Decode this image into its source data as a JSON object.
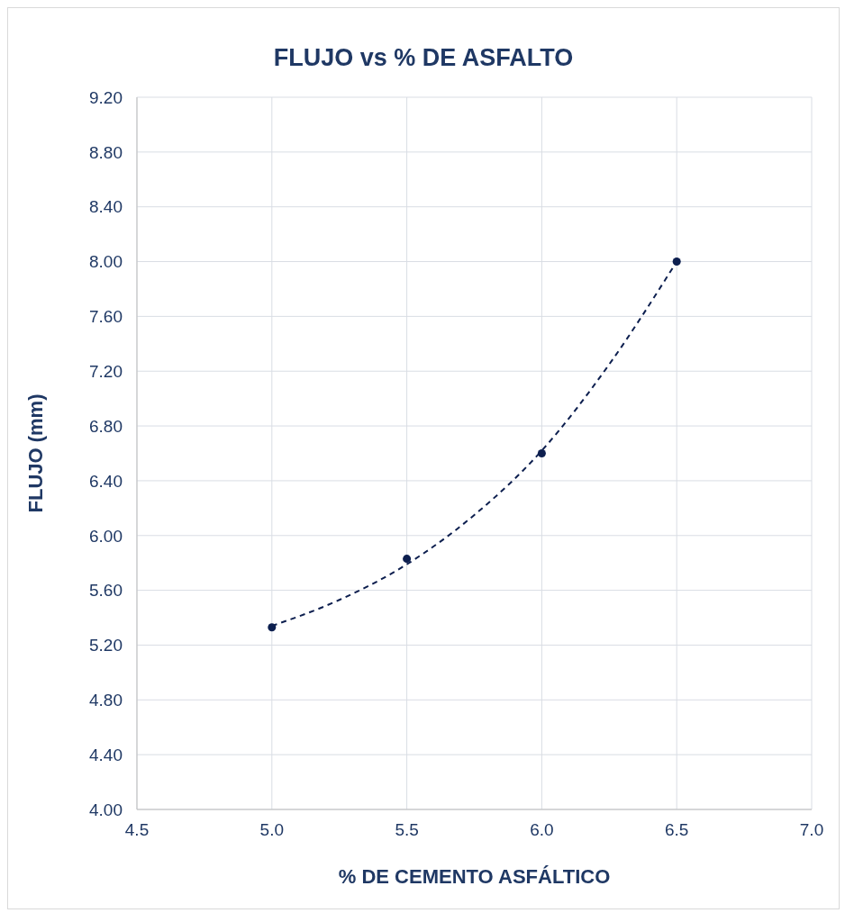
{
  "chart_data": {
    "type": "scatter",
    "title": "FLUJO vs % DE ASFALTO",
    "xlabel": "% DE CEMENTO ASFÁLTICO",
    "ylabel": "FLUJO (mm)",
    "xlim": [
      4.5,
      7.0
    ],
    "xticks": [
      {
        "value": 4.5,
        "label": "4.5"
      },
      {
        "value": 5,
        "label": "5.0"
      },
      {
        "value": 5.5,
        "label": "5.5"
      },
      {
        "value": 6,
        "label": "6.0"
      },
      {
        "value": 6.5,
        "label": "6.5"
      },
      {
        "value": 7,
        "label": "7.0"
      }
    ],
    "ylim": [
      4.0,
      9.2
    ],
    "yticks": [
      {
        "value": 4,
        "label": "4.00"
      },
      {
        "value": 4.4,
        "label": "4.40"
      },
      {
        "value": 4.8,
        "label": "4.80"
      },
      {
        "value": 5.2,
        "label": "5.20"
      },
      {
        "value": 5.6,
        "label": "5.60"
      },
      {
        "value": 6,
        "label": "6.00"
      },
      {
        "value": 6.4,
        "label": "6.40"
      },
      {
        "value": 6.8,
        "label": "6.80"
      },
      {
        "value": 7.2,
        "label": "7.20"
      },
      {
        "value": 7.6,
        "label": "7.60"
      },
      {
        "value": 8,
        "label": "8.00"
      },
      {
        "value": 8.4,
        "label": "8.40"
      },
      {
        "value": 8.8,
        "label": "8.80"
      },
      {
        "value": 9.2,
        "label": "9.20"
      }
    ],
    "grid": true,
    "series": [
      {
        "color": "#0d1f4f",
        "marker": "circle",
        "x": [
          5.0,
          5.5,
          6.0,
          6.5
        ],
        "values": [
          5.33,
          5.83,
          6.6,
          8.0
        ]
      },
      {
        "type": "line",
        "color": "#0d1f4f",
        "line_style": "dashed",
        "marker": "none",
        "x": [
          5.0,
          5.25,
          5.5,
          5.75,
          6.0,
          6.25,
          6.5
        ],
        "values": [
          5.34,
          5.53,
          5.79,
          6.15,
          6.62,
          7.25,
          8.0
        ]
      }
    ]
  }
}
